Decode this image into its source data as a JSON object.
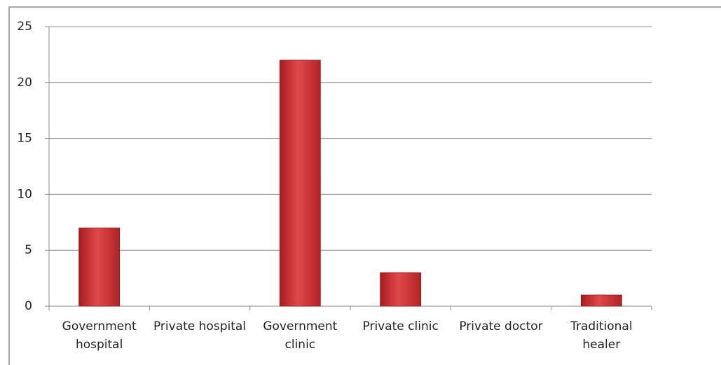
{
  "chart_data": {
    "type": "bar",
    "categories": [
      "Government hospital",
      "Private hospital",
      "Government clinic",
      "Private clinic",
      "Private doctor",
      "Traditional healer"
    ],
    "values": [
      7,
      0,
      22,
      3,
      0,
      1
    ],
    "color": "#d23a3c",
    "ylim": [
      0,
      25
    ],
    "yticks": [
      0,
      5,
      10,
      15,
      20,
      25
    ],
    "grid": true
  }
}
